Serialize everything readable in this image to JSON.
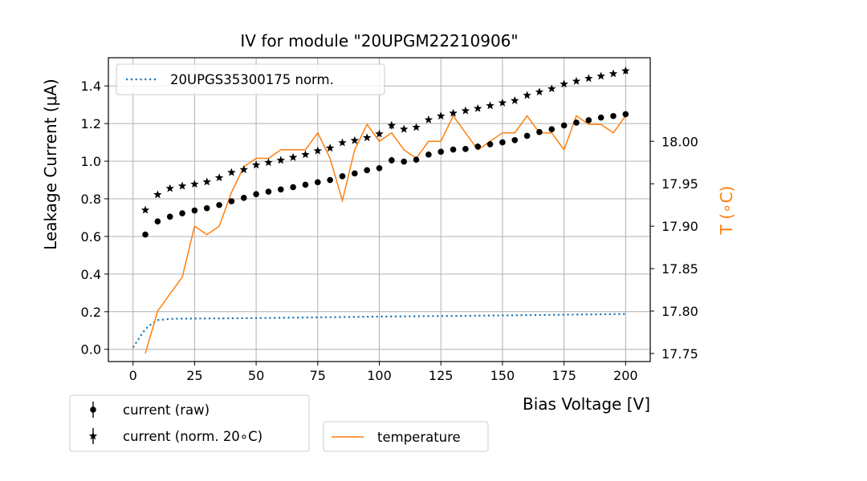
{
  "chart_data": {
    "type": "scatter",
    "title": "IV for module \"20UPGM22210906\"",
    "xlabel": "Bias Voltage [V]",
    "ylabel": "Leakage Current (μA)",
    "y2label": "T (∘C)",
    "xlim": [
      -10,
      210
    ],
    "ylim": [
      -0.065,
      1.55
    ],
    "y2lim": [
      17.7405,
      18.0985
    ],
    "x_ticks": [
      0,
      25,
      50,
      75,
      100,
      125,
      150,
      175,
      200
    ],
    "x_tick_labels": [
      "0",
      "25",
      "50",
      "75",
      "100",
      "125",
      "150",
      "175",
      "200"
    ],
    "y_ticks": [
      0.0,
      0.2,
      0.4,
      0.6,
      0.8,
      1.0,
      1.2,
      1.4
    ],
    "y_tick_labels": [
      "0.0",
      "0.2",
      "0.4",
      "0.6",
      "0.8",
      "1.0",
      "1.2",
      "1.4"
    ],
    "y2_ticks": [
      17.75,
      17.8,
      17.85,
      17.9,
      17.95,
      18.0
    ],
    "y2_tick_labels": [
      "17.75",
      "17.80",
      "17.85",
      "17.90",
      "17.95",
      "18.00"
    ],
    "grid": true,
    "series": [
      {
        "name": "current (raw)",
        "marker": "circle",
        "color": "#000000",
        "x": [
          5,
          10,
          15,
          20,
          25,
          30,
          35,
          40,
          45,
          50,
          55,
          60,
          65,
          70,
          75,
          80,
          85,
          90,
          95,
          100,
          105,
          110,
          115,
          120,
          125,
          130,
          135,
          140,
          145,
          150,
          155,
          160,
          165,
          170,
          175,
          180,
          185,
          190,
          195,
          200
        ],
        "y": [
          0.61,
          0.68,
          0.705,
          0.723,
          0.738,
          0.75,
          0.767,
          0.787,
          0.805,
          0.825,
          0.838,
          0.85,
          0.862,
          0.875,
          0.888,
          0.9,
          0.92,
          0.935,
          0.952,
          0.963,
          1.005,
          0.998,
          1.008,
          1.035,
          1.05,
          1.062,
          1.065,
          1.078,
          1.09,
          1.1,
          1.112,
          1.135,
          1.155,
          1.17,
          1.19,
          1.205,
          1.218,
          1.232,
          1.24,
          1.25
        ],
        "error": [
          0,
          0,
          0,
          0,
          0,
          0,
          0,
          0,
          0,
          0,
          0,
          0,
          0,
          0,
          0,
          0,
          0,
          0,
          0,
          0,
          0.035,
          0,
          0,
          0,
          0,
          0,
          0,
          0,
          0,
          0,
          0,
          0,
          0,
          0,
          0,
          0,
          0,
          0,
          0,
          0
        ]
      },
      {
        "name": "current (norm. 20∘C)",
        "marker": "star",
        "color": "#000000",
        "x": [
          5,
          10,
          15,
          20,
          25,
          30,
          35,
          40,
          45,
          50,
          55,
          60,
          65,
          70,
          75,
          80,
          85,
          90,
          95,
          100,
          105,
          110,
          115,
          120,
          125,
          130,
          135,
          140,
          145,
          150,
          155,
          160,
          165,
          170,
          175,
          180,
          185,
          190,
          195,
          200
        ],
        "y": [
          0.74,
          0.822,
          0.855,
          0.868,
          0.878,
          0.89,
          0.912,
          0.94,
          0.955,
          0.98,
          0.993,
          1.005,
          1.02,
          1.035,
          1.055,
          1.07,
          1.098,
          1.11,
          1.125,
          1.145,
          1.19,
          1.17,
          1.18,
          1.22,
          1.24,
          1.255,
          1.268,
          1.28,
          1.295,
          1.31,
          1.322,
          1.35,
          1.368,
          1.385,
          1.41,
          1.425,
          1.44,
          1.452,
          1.465,
          1.48
        ],
        "error": [
          0,
          0,
          0,
          0,
          0,
          0,
          0,
          0,
          0,
          0,
          0,
          0,
          0,
          0,
          0,
          0,
          0,
          0,
          0,
          0,
          0.04,
          0,
          0,
          0,
          0,
          0,
          0,
          0,
          0,
          0,
          0,
          0,
          0,
          0,
          0,
          0,
          0,
          0,
          0,
          0.03
        ]
      },
      {
        "name": "20UPGS35300175 norm.",
        "style": "dotted",
        "color": "#1f77b4",
        "x": [
          0,
          2,
          4,
          6,
          8,
          10,
          15,
          20,
          30,
          50,
          75,
          100,
          125,
          150,
          175,
          200
        ],
        "y": [
          0.01,
          0.05,
          0.09,
          0.12,
          0.14,
          0.155,
          0.162,
          0.163,
          0.164,
          0.166,
          0.17,
          0.174,
          0.177,
          0.18,
          0.184,
          0.188
        ]
      },
      {
        "name": "temperature",
        "axis": "right",
        "style": "solid",
        "color": "#ff7f0e",
        "x": [
          5,
          10,
          15,
          20,
          25,
          30,
          35,
          40,
          45,
          50,
          55,
          60,
          65,
          70,
          75,
          80,
          85,
          90,
          95,
          100,
          105,
          110,
          115,
          120,
          125,
          130,
          135,
          140,
          145,
          150,
          155,
          160,
          165,
          170,
          175,
          180,
          185,
          190,
          195,
          200
        ],
        "y": [
          17.75,
          17.8,
          17.82,
          17.84,
          17.9,
          17.89,
          17.9,
          17.94,
          17.97,
          17.98,
          17.98,
          17.99,
          17.99,
          17.99,
          18.01,
          17.98,
          17.93,
          17.99,
          18.02,
          18.0,
          18.01,
          17.99,
          17.98,
          18.0,
          18.0,
          18.03,
          18.01,
          17.99,
          18.0,
          18.01,
          18.01,
          18.03,
          18.01,
          18.01,
          17.99,
          18.03,
          18.02,
          18.02,
          18.01,
          18.03
        ]
      }
    ],
    "legends": {
      "upper_left": [
        "20UPGS35300175 norm."
      ],
      "below_left": [
        "current (raw)",
        "current (norm. 20∘C)"
      ],
      "below_right": [
        "temperature"
      ]
    }
  }
}
